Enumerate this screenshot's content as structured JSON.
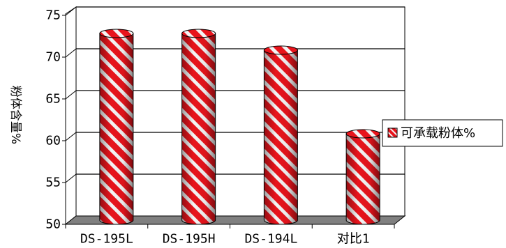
{
  "chart_data": {
    "type": "bar",
    "style": "3d-cylinder",
    "title": "",
    "xlabel": "",
    "ylabel": "粉体含量%",
    "categories": [
      "DS-195L",
      "DS-195H",
      "DS-194L",
      "对比1"
    ],
    "series": [
      {
        "name": "可承载粉体%",
        "values": [
          72,
          72,
          70,
          60
        ],
        "color": "#e8141c",
        "pattern": "diagonal-stripes-red-white"
      }
    ],
    "ylim": [
      50,
      75
    ],
    "yticks": [
      50,
      55,
      60,
      65,
      70,
      75
    ],
    "grid": true,
    "legend": {
      "position": "right",
      "label": "可承载粉体%"
    },
    "floor_color": "#808080"
  }
}
